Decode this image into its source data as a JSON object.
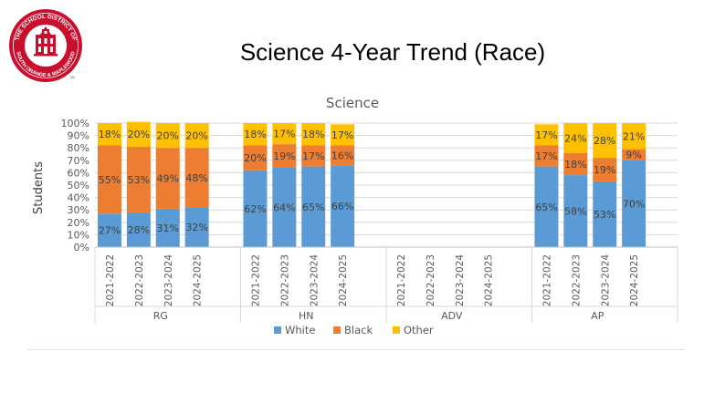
{
  "slide_title": "Science 4-Year Trend (Race)",
  "logo": {
    "arc_text_top": "THE SCHOOL DISTRICT OF",
    "arc_text_bottom": "SOUTH ORANGE & MAPLEWOOD",
    "mark": "TM",
    "colors": {
      "brand": "#c8102e"
    }
  },
  "chart_data": {
    "type": "bar",
    "stacked": true,
    "title": "Science",
    "ylabel": "Students",
    "xlabel": "",
    "ylim": [
      0,
      1
    ],
    "yticks": [
      "0%",
      "10%",
      "20%",
      "30%",
      "40%",
      "50%",
      "60%",
      "70%",
      "80%",
      "90%",
      "100%"
    ],
    "grid": true,
    "legend_position": "bottom",
    "groups": [
      {
        "name": "RG",
        "years": [
          "2021-2022",
          "2022-2023",
          "2023-2024",
          "2024-2025"
        ]
      },
      {
        "name": "HN",
        "years": [
          "2021-2022",
          "2022-2023",
          "2023-2024",
          "2024-2025"
        ]
      },
      {
        "name": "ADV",
        "years": [
          "2021-2022",
          "2022-2023",
          "2023-2024",
          "2024-2025"
        ]
      },
      {
        "name": "AP",
        "years": [
          "2021-2022",
          "2022-2023",
          "2023-2024",
          "2024-2025"
        ]
      }
    ],
    "series": [
      {
        "name": "White",
        "color": "#5b9bd5",
        "values": [
          [
            27,
            28,
            31,
            32
          ],
          [
            62,
            64,
            65,
            66
          ],
          [
            null,
            null,
            null,
            null
          ],
          [
            65,
            58,
            53,
            70
          ]
        ]
      },
      {
        "name": "Black",
        "color": "#ed7d31",
        "values": [
          [
            55,
            53,
            49,
            48
          ],
          [
            20,
            19,
            17,
            16
          ],
          [
            null,
            null,
            null,
            null
          ],
          [
            17,
            18,
            19,
            9
          ]
        ]
      },
      {
        "name": "Other",
        "color": "#ffc000",
        "values": [
          [
            18,
            20,
            20,
            20
          ],
          [
            18,
            17,
            18,
            17
          ],
          [
            null,
            null,
            null,
            null
          ],
          [
            17,
            24,
            28,
            21
          ]
        ]
      }
    ]
  }
}
